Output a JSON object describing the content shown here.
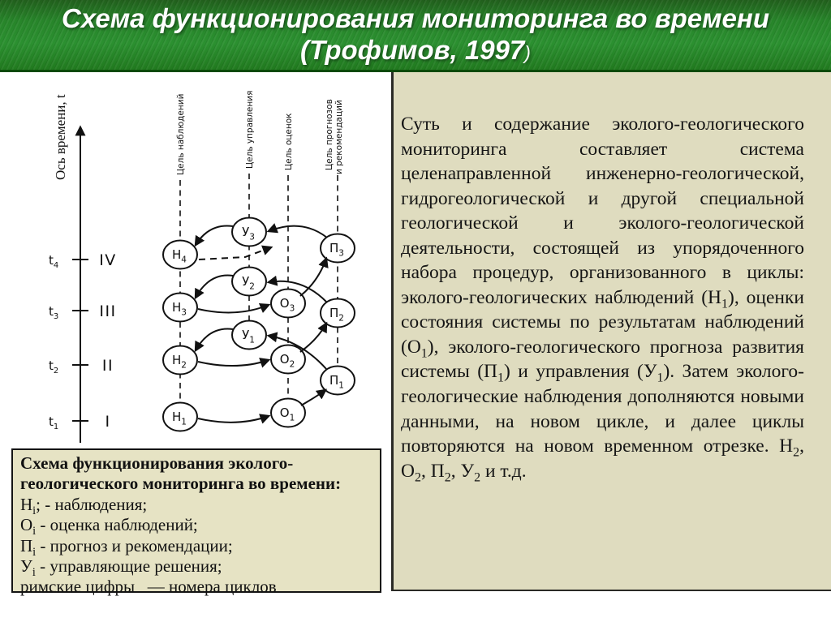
{
  "slide": {
    "title_line1": "Схема функционирования мониторинга во времени",
    "title_line2": "(Трофимов, 1997",
    "title_line2_close": ")"
  },
  "diagram": {
    "axis_label": "Ось времени, t",
    "ticks": [
      {
        "label": "t",
        "sub": "4",
        "roman": "IV"
      },
      {
        "label": "t",
        "sub": "3",
        "roman": "III"
      },
      {
        "label": "t",
        "sub": "2",
        "roman": "II"
      },
      {
        "label": "t",
        "sub": "1",
        "roman": "I"
      }
    ],
    "columns": [
      {
        "label": "Цель наблюдений"
      },
      {
        "label": "Цель управления"
      },
      {
        "label": "Цель оценок"
      },
      {
        "label": "Цель прогнозов",
        "label2": "и рекомендаций"
      }
    ],
    "nodes": [
      {
        "letter": "Н",
        "sub": "1"
      },
      {
        "letter": "Н",
        "sub": "2"
      },
      {
        "letter": "Н",
        "sub": "3"
      },
      {
        "letter": "Н",
        "sub": "4"
      },
      {
        "letter": "У",
        "sub": "1"
      },
      {
        "letter": "У",
        "sub": "2"
      },
      {
        "letter": "У",
        "sub": "3"
      },
      {
        "letter": "О",
        "sub": "1"
      },
      {
        "letter": "О",
        "sub": "2"
      },
      {
        "letter": "О",
        "sub": "3"
      },
      {
        "letter": "П",
        "sub": "1"
      },
      {
        "letter": "П",
        "sub": "2"
      },
      {
        "letter": "П",
        "sub": "3"
      }
    ]
  },
  "legend": {
    "title": "Схема функционирования эколого-геологического мониторинга во времени:",
    "items": [
      {
        "runs": [
          {
            "t": "Н"
          },
          {
            "t": "i",
            "sub": true
          },
          {
            "t": "; - наблюдения;"
          }
        ]
      },
      {
        "runs": [
          {
            "t": "О"
          },
          {
            "t": "i",
            "sub": true
          },
          {
            "t": " - оценка наблюдений;"
          }
        ]
      },
      {
        "runs": [
          {
            "t": "П"
          },
          {
            "t": "i",
            "sub": true
          },
          {
            "t": " - прогноз и рекомендации;"
          }
        ]
      },
      {
        "runs": [
          {
            "t": "У"
          },
          {
            "t": "i",
            "sub": true
          },
          {
            "t": " - управляющие решения;"
          }
        ]
      }
    ],
    "footer": "римские цифры   — номера циклов"
  },
  "main_text": {
    "runs": [
      {
        "t": "Суть и содержание эколого-геологического мониторинга составляет система целенаправленной инженерно-геологической, гидрогеологической и другой специальной геологической и эколого-геологической деятельности, состоящей из упорядоченного набора процедур, организованного в циклы: эколого-геологических наблюдений (Н"
      },
      {
        "t": "1",
        "sub": true
      },
      {
        "t": "), оценки состояния системы по результатам наблюдений (О"
      },
      {
        "t": "1",
        "sub": true
      },
      {
        "t": "), эколого-геологического прогноза развития системы (П"
      },
      {
        "t": "1",
        "sub": true
      },
      {
        "t": ") и управления (У"
      },
      {
        "t": "1",
        "sub": true
      },
      {
        "t": "). Затем эколого-геологические наблюдения дополняются новыми данными, на новом цикле, и далее циклы повторяются на новом временном отрезке.  Н"
      },
      {
        "t": "2",
        "sub": true
      },
      {
        "t": ",  О"
      },
      {
        "t": "2",
        "sub": true
      },
      {
        "t": ", П"
      },
      {
        "t": "2",
        "sub": true
      },
      {
        "t": ", У"
      },
      {
        "t": "2",
        "sub": true
      },
      {
        "t": " и  т.д."
      }
    ]
  },
  "colors": {
    "header_green": "#27852a",
    "header_line": "#0a4a08",
    "panel_beige": "#dfdcbf",
    "legend_beige": "#e6e3c4",
    "ink": "#111111"
  }
}
